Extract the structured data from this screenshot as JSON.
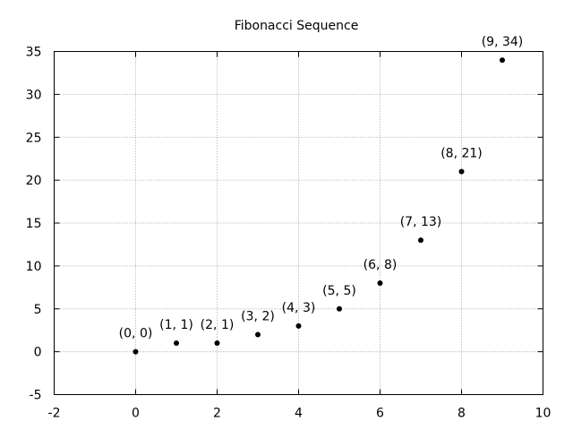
{
  "chart_data": {
    "type": "scatter",
    "title": "Fibonacci Sequence",
    "xlabel": "",
    "ylabel": "",
    "xlim": [
      -2,
      10
    ],
    "ylim": [
      -5,
      35
    ],
    "x_ticks": [
      -2,
      0,
      2,
      4,
      6,
      8,
      10
    ],
    "y_ticks": [
      -5,
      0,
      5,
      10,
      15,
      20,
      25,
      30,
      35
    ],
    "grid": true,
    "point_color": "#000000",
    "series": [
      {
        "x": [
          0,
          1,
          2,
          3,
          4,
          5,
          6,
          7,
          8,
          9
        ],
        "y": [
          0,
          1,
          1,
          2,
          3,
          5,
          8,
          13,
          21,
          34
        ],
        "labels": [
          "(0, 0)",
          "(1, 1)",
          "(2, 1)",
          "(3, 2)",
          "(4, 3)",
          "(5, 5)",
          "(6, 8)",
          "(7, 13)",
          "(8, 21)",
          "(9, 34)"
        ]
      }
    ]
  }
}
